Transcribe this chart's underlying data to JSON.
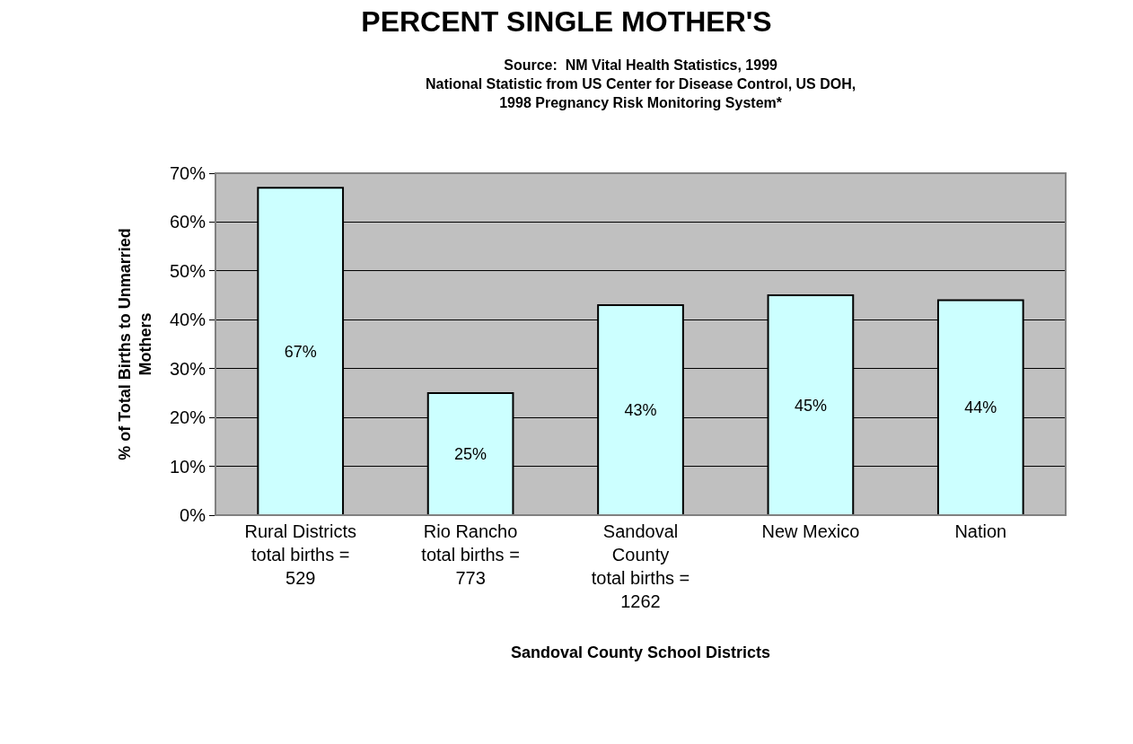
{
  "chart_data": {
    "type": "bar",
    "title": "PERCENT SINGLE MOTHER'S",
    "subtitle": "Source:  NM Vital Health Statistics, 1999\nNational Statistic from US Center for Disease Control, US DOH,\n1998 Pregnancy Risk Monitoring System*",
    "xlabel": "Sandoval County School Districts",
    "ylabel": "% of Total Births to Unmarried\nMothers",
    "categories": [
      "Rural Districts\ntotal births =\n529",
      "Rio Rancho\ntotal births =\n773",
      "Sandoval\nCounty\ntotal births =\n1262",
      "New Mexico",
      "Nation"
    ],
    "values": [
      67,
      25,
      43,
      45,
      44
    ],
    "value_labels": [
      "67%",
      "25%",
      "43%",
      "45%",
      "44%"
    ],
    "color": "#ccffff",
    "ylim": [
      0,
      70
    ],
    "yticks": [
      {
        "value": 0,
        "label": "0%"
      },
      {
        "value": 10,
        "label": "10%"
      },
      {
        "value": 20,
        "label": "20%"
      },
      {
        "value": 30,
        "label": "30%"
      },
      {
        "value": 40,
        "label": "40%"
      },
      {
        "value": 50,
        "label": "50%"
      },
      {
        "value": 60,
        "label": "60%"
      },
      {
        "value": 70,
        "label": "70%"
      }
    ],
    "grid": "y",
    "legend": false
  }
}
